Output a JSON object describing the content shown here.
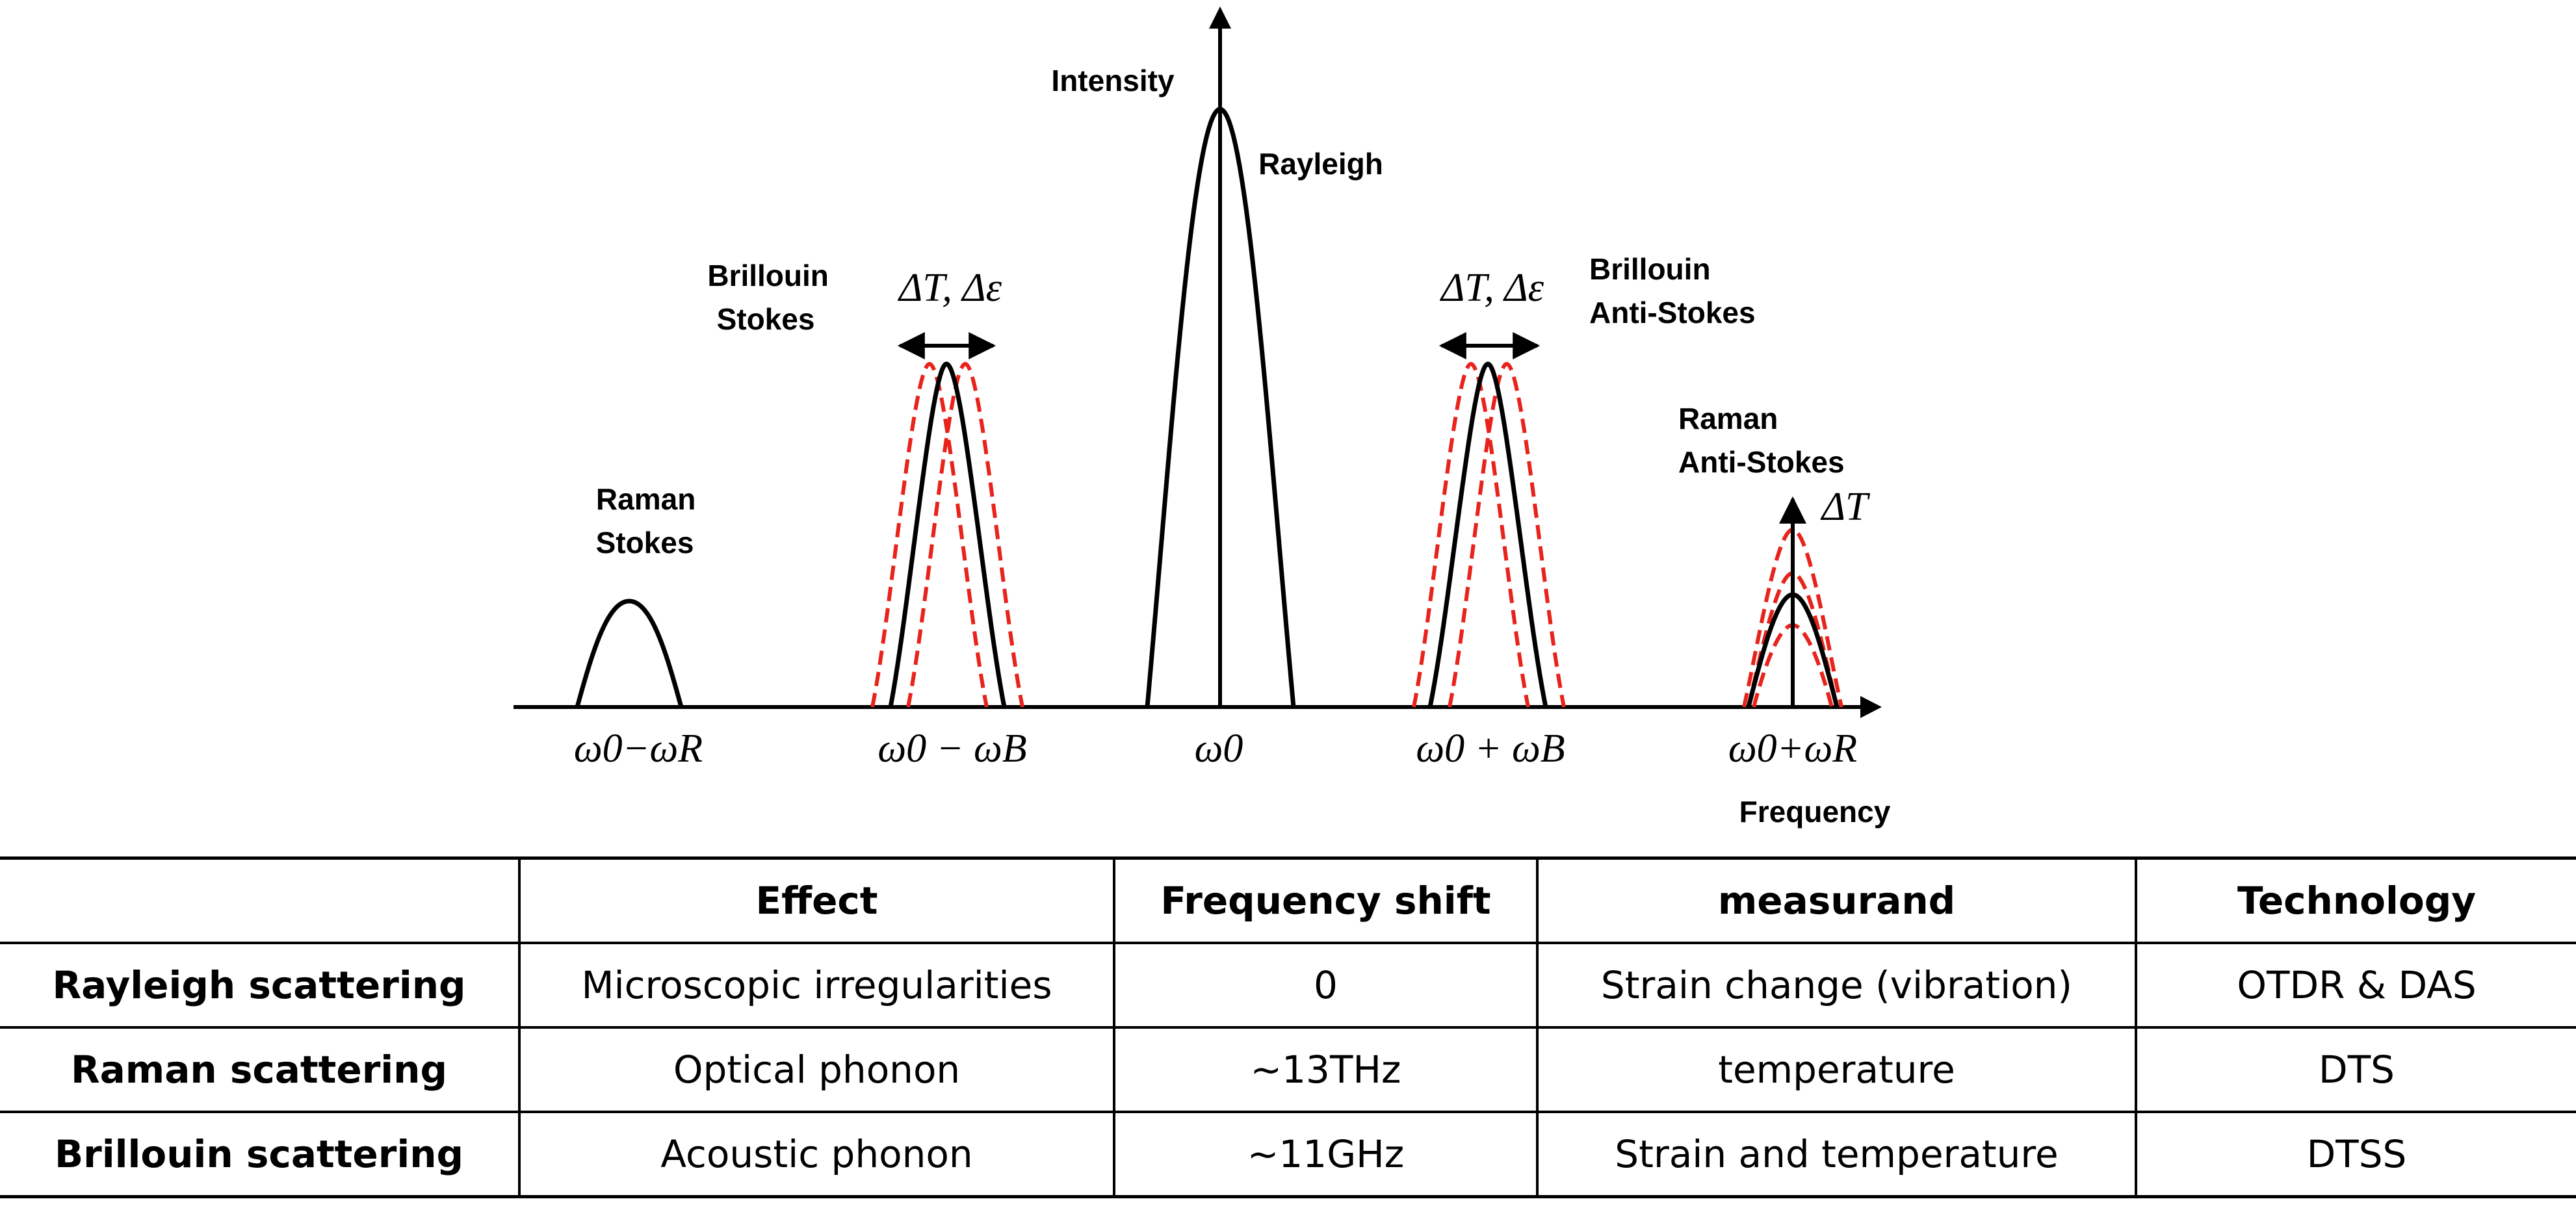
{
  "diagram": {
    "axes": {
      "y_label": "Intensity",
      "x_label": "Frequency"
    },
    "peaks": [
      {
        "id": "raman-stokes",
        "label_lines": [
          "Raman",
          "Stokes"
        ],
        "freq_label": "ω0−ωR"
      },
      {
        "id": "brillouin-stokes",
        "label_lines": [
          "Brillouin",
          "Stokes"
        ],
        "freq_label": "ω0 − ωB",
        "shift_label": "ΔT, Δε"
      },
      {
        "id": "rayleigh",
        "label_lines": [
          "Rayleigh"
        ],
        "freq_label": "ω0"
      },
      {
        "id": "brillouin-anti-stokes",
        "label_lines": [
          "Brillouin",
          "Anti-Stokes"
        ],
        "freq_label": "ω0 + ωB",
        "shift_label": "ΔT, Δε"
      },
      {
        "id": "raman-anti-stokes",
        "label_lines": [
          "Raman",
          "Anti-Stokes"
        ],
        "freq_label": "ω0+ωR",
        "shift_label": "ΔT"
      }
    ],
    "colors": {
      "peak": "#000000",
      "shifted": "#e8231c"
    }
  },
  "table": {
    "headers": [
      "",
      "Effect",
      "Frequency shift",
      "measurand",
      "Technology"
    ],
    "rows": [
      {
        "name": "Rayleigh scattering",
        "effect": "Microscopic irregularities",
        "shift": "0",
        "measurand": "Strain change (vibration)",
        "technology": "OTDR & DAS"
      },
      {
        "name": "Raman scattering",
        "effect": "Optical phonon",
        "shift": "~13THz",
        "measurand": "temperature",
        "technology": "DTS"
      },
      {
        "name": "Brillouin scattering",
        "effect": "Acoustic phonon",
        "shift": "~11GHz",
        "measurand": "Strain and temperature",
        "technology": "DTSS"
      }
    ]
  }
}
